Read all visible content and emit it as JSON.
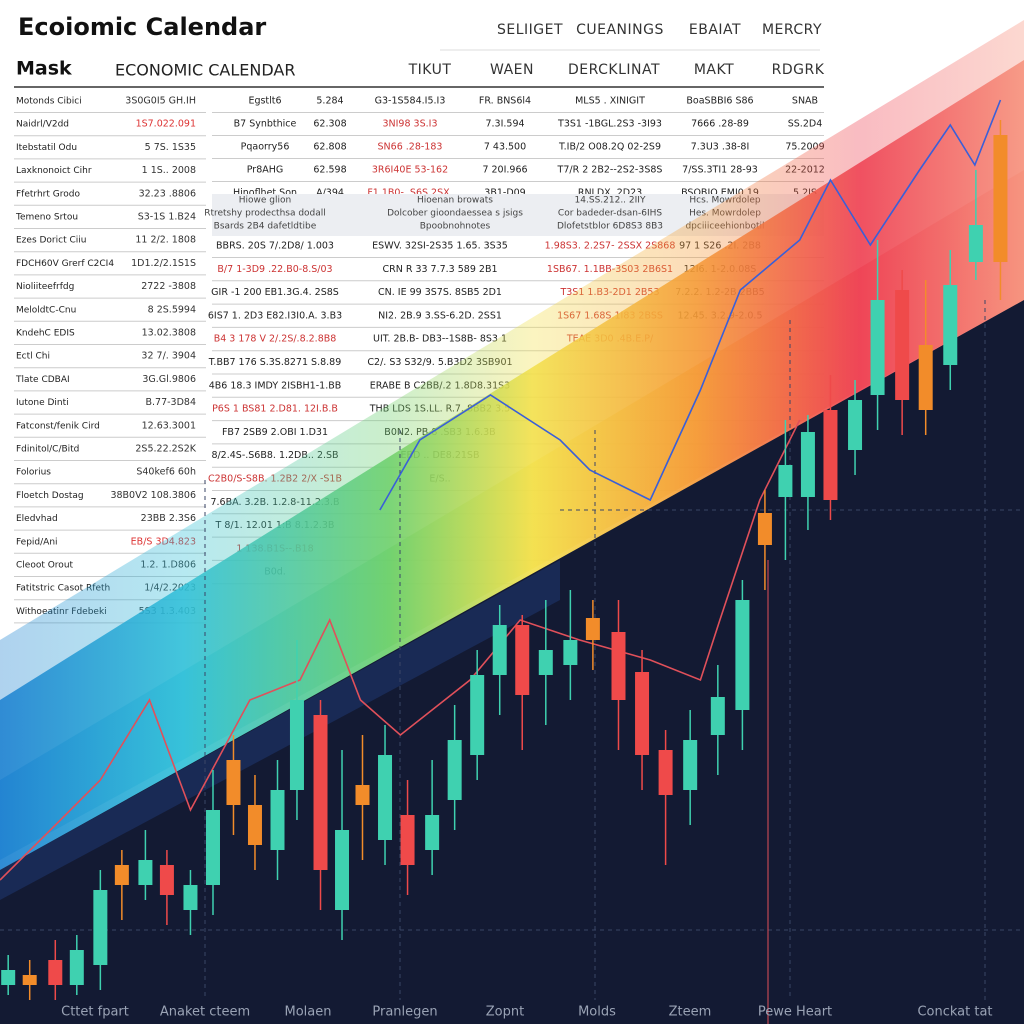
{
  "header": {
    "title": "Ecoiomic Calendar",
    "tabs": [
      "SELIIGET",
      "CUEANINGS",
      "EBAIAT",
      "MERCRY"
    ],
    "subtitle": "Mask",
    "section": "ECONOMIC CALENDAR",
    "columns": [
      "TIKUT",
      "WAEN",
      "DERCKLINAT",
      "MAKT",
      "RDGRK"
    ]
  },
  "side_table": {
    "rows": [
      [
        "Motonds Cibici",
        "3S0G0I5 GH.IH"
      ],
      [
        "Naidrl/V2dd",
        "1S7.022.091"
      ],
      [
        "Itebstatil Odu",
        "5 7S. 1S35"
      ],
      [
        "Laxknonoict Cihr",
        "1 1S.. 2008"
      ],
      [
        "Ffetrhrt Grodo",
        "32.23 .8806"
      ],
      [
        "Temeno Srtou",
        "S3-1S 1.B24"
      ],
      [
        "Ezes Dorict Ciiu",
        "11 2/2. 1808"
      ],
      [
        "FDCH60V Grerf C2CI4",
        "1D1.2/2.1S1S"
      ],
      [
        "Nioliiteefrfdg",
        "2722 -3808"
      ],
      [
        "MeloldtC-Cnu",
        "8 2S.5994"
      ],
      [
        "KndehC EDIS",
        "13.02.3808"
      ],
      [
        "Ectl Chi",
        "32 7/. 3904"
      ],
      [
        "Tlate CDBAI",
        "3G.Gl.9806"
      ],
      [
        "Iutone Dinti",
        "B.77-3D84"
      ],
      [
        "Fatconst/fenik Cird",
        "12.63.3001"
      ],
      [
        "Fdinitol/C/Bitd",
        "2S5.22.2S2K"
      ],
      [
        "Folorius",
        "S40kef6 60h"
      ],
      [
        "Floetch Dostag",
        "38B0V2 108.3806"
      ],
      [
        "Eledvhad",
        "23BB 2.3S6"
      ],
      [
        "Fepid/Ani",
        "EB/S 3D4.823"
      ],
      [
        "Cleoot Orout",
        "1.2. 1.D806"
      ],
      [
        "Fatitstric Casot Rfeth",
        "1/4/2.2023"
      ],
      [
        "Withoeatinr Fdebeki",
        "5S3 1.3.403"
      ]
    ]
  },
  "calendar": {
    "rows": [
      [
        "Egstlt6",
        "5.284",
        "G3-1S584.I5.I3",
        "FR. BNS6l4",
        "MLS5 . XINIGIT",
        "BoaSBBI6 S86",
        "SNAB"
      ],
      [
        "B7 Synbthice",
        "62.308",
        "3NI98 3S.I3",
        "7.3I.594",
        "T3S1 -1BGL.2S3 -3I93",
        "7666 .28-89",
        "SS.2D4"
      ],
      [
        "Pqaorry56",
        "62.808",
        "SN66 .28-183",
        "7 43.500",
        "T.IB/2 O08.2Q 02-2S9",
        "7.3U3 .38-8I",
        "75.2009"
      ],
      [
        "Pr8AHG",
        "62.598",
        "3R6I40E 53-162",
        "7 20I.966",
        "T7/R 2 2B2--2S2-3S8S",
        "7/SS.3TI1 28-93",
        "22-2012"
      ],
      [
        "Hinoflhet Son",
        "A/394",
        "F1 1B0- .S6S 2SX.",
        "3B1-D09",
        "RNLDX. 2D23",
        "BSOBIO EMI0.19",
        "5.2IS"
      ]
    ],
    "notes": [
      [
        "Hiowe glion",
        "Hioenan browats",
        "14.SS.212.. 2IIY",
        "Hcs. Mowrdolep"
      ],
      [
        "Rtretshy prodecthsa dodall",
        "Dolcober gioondaessea s jsigs",
        "Cor badeder-dsan-6IHS",
        "Hes. Mowrdolep"
      ],
      [
        "Bsards 2B4 dafetldtibe",
        "Bpoobnohnotes",
        "Dlofetstblor 6D8S3 8B3",
        "dpciiiceehionbotil"
      ]
    ],
    "entries": [
      [
        "BBRS. 20S 7/.2D8/ 1.003",
        "ESWV. 32SI-2S35 1.65. 3S35",
        "1.98S3. 2.2S7- 2SSX 2S868",
        "97 1 S26 .2I. 2B8"
      ],
      [
        "B/7 1-3D9 .22.B0-8.S/03",
        "CRN R 33 7.7.3 589 2B1",
        "1SB67. 1.1BB-3S03 2B6S1",
        "12I6. 1-2.0.08S"
      ],
      [
        "GIR -1 200 EB1.3G.4. 2S8S",
        "CN. IE 99 3S7S. 8SB5 2D1",
        "T3S1 1.B3-2D1 2B53",
        "7.2.2. 1.2-2B 2BB5"
      ],
      [
        "6IS7 1. 2D3 E82.I3I0.A. 3.B3",
        "NI2. 2B.9 3.SS-6.2D. 2SS1",
        "1S67 1.68S.1I83 2BSS",
        "12.45. 3.2.9-2.0.5"
      ],
      [
        "B4 3 178 V 2/.2S/.8.2.8B8",
        "UIT. 2B.B- DB3--1S8B- 8S3 1",
        "TEAE 3D0 .4B.E.P/"
      ],
      [
        "T.BB7 176 S.3S.8271 S.8.89",
        "C2/. S3 S32/9. 5.B3D2 3SB901"
      ],
      [
        "4B6 18.3 IMDY 2ISBH1-1.BB",
        "ERABE B C2BB/.2 1.8D8.31S3"
      ],
      [
        "P6S 1 BS81 2.D81. 12I.B.B",
        "THB LDS 1S.LL. R.7. 8BB2 3.5"
      ],
      [
        "FB7 2SB9 2.OBI 1.D31",
        "B0N2. PB.8 .SB3 1.6.3B"
      ],
      [
        "8/2.4S-.S6B8. 1.2DB.. 2.SB",
        "EBD .. DE8.21SB"
      ],
      [
        "C2B0/S-S8B. 1.2B2 2/X -S1B",
        "E/S.."
      ],
      [
        "7.6BA. 3.2B. 1.2.8-11.2.3.B"
      ],
      [
        "T 8/1. 12.01 1:B 8.1.2.3B"
      ],
      [
        "1 138.B1S--.B18"
      ],
      [
        "B0d."
      ]
    ]
  },
  "chart": {
    "type": "candlestick",
    "xlim": [
      0,
      100
    ],
    "ylim": [
      0,
      100
    ],
    "x_labels": [
      "Cttet fpart",
      "Anaket cteem",
      "Molaen",
      "Pranlegen",
      "Zopnt",
      "Molds",
      "Zteem",
      "Pewe Heart",
      "Conckat tat"
    ],
    "candles": [
      {
        "x": 0.8,
        "o": 1.5,
        "c": 3.0,
        "h": 4.5,
        "l": 0.5,
        "color": "#3fd1b0"
      },
      {
        "x": 2.9,
        "o": 2.5,
        "c": 1.5,
        "h": 4.0,
        "l": 0.0,
        "color": "#f28c2a"
      },
      {
        "x": 5.4,
        "o": 4.0,
        "c": 1.5,
        "h": 6.0,
        "l": 0.0,
        "color": "#ef4a4a"
      },
      {
        "x": 7.5,
        "o": 1.5,
        "c": 5.0,
        "h": 6.5,
        "l": 0.5,
        "color": "#3fd1b0"
      },
      {
        "x": 9.8,
        "o": 3.5,
        "c": 11.0,
        "h": 13.0,
        "l": 1.0,
        "color": "#3fd1b0"
      },
      {
        "x": 11.9,
        "o": 13.5,
        "c": 11.5,
        "h": 15.0,
        "l": 8.0,
        "color": "#f28c2a"
      },
      {
        "x": 14.2,
        "o": 11.5,
        "c": 14.0,
        "h": 17.0,
        "l": 10.0,
        "color": "#3fd1b0"
      },
      {
        "x": 16.3,
        "o": 13.5,
        "c": 10.5,
        "h": 15.0,
        "l": 7.5,
        "color": "#ef4a4a"
      },
      {
        "x": 18.6,
        "o": 9.0,
        "c": 11.5,
        "h": 13.0,
        "l": 6.5,
        "color": "#3fd1b0"
      },
      {
        "x": 20.8,
        "o": 11.5,
        "c": 19.0,
        "h": 23.0,
        "l": 8.5,
        "color": "#3fd1b0"
      },
      {
        "x": 22.8,
        "o": 24.0,
        "c": 19.5,
        "h": 26.5,
        "l": 16.5,
        "color": "#f28c2a"
      },
      {
        "x": 24.9,
        "o": 19.5,
        "c": 15.5,
        "h": 22.5,
        "l": 13.0,
        "color": "#f28c2a"
      },
      {
        "x": 27.1,
        "o": 15.0,
        "c": 21.0,
        "h": 24.0,
        "l": 12.0,
        "color": "#3fd1b0"
      },
      {
        "x": 29.0,
        "o": 21.0,
        "c": 30.0,
        "h": 36.0,
        "l": 18.0,
        "color": "#3fd1b0"
      },
      {
        "x": 31.3,
        "o": 28.5,
        "c": 13.0,
        "h": 30.0,
        "l": 9.0,
        "color": "#ef4a4a"
      },
      {
        "x": 33.4,
        "o": 9.0,
        "c": 17.0,
        "h": 25.0,
        "l": 6.0,
        "color": "#3fd1b0"
      },
      {
        "x": 35.4,
        "o": 21.5,
        "c": 19.5,
        "h": 26.5,
        "l": 14.0,
        "color": "#f28c2a"
      },
      {
        "x": 37.6,
        "o": 16.0,
        "c": 24.5,
        "h": 27.5,
        "l": 13.5,
        "color": "#3fd1b0"
      },
      {
        "x": 39.8,
        "o": 18.5,
        "c": 13.5,
        "h": 22.0,
        "l": 10.5,
        "color": "#ef4a4a"
      },
      {
        "x": 42.2,
        "o": 15.0,
        "c": 18.5,
        "h": 24.0,
        "l": 12.5,
        "color": "#3fd1b0"
      },
      {
        "x": 44.4,
        "o": 20.0,
        "c": 26.0,
        "h": 29.5,
        "l": 17.0,
        "color": "#3fd1b0"
      },
      {
        "x": 46.6,
        "o": 24.5,
        "c": 32.5,
        "h": 35.0,
        "l": 22.0,
        "color": "#3fd1b0"
      },
      {
        "x": 48.8,
        "o": 32.5,
        "c": 37.5,
        "h": 39.5,
        "l": 28.5,
        "color": "#3fd1b0"
      },
      {
        "x": 51.0,
        "o": 37.5,
        "c": 30.5,
        "h": 38.5,
        "l": 25.0,
        "color": "#ef4a4a"
      },
      {
        "x": 53.3,
        "o": 32.5,
        "c": 35.0,
        "h": 40.0,
        "l": 27.5,
        "color": "#3fd1b0"
      },
      {
        "x": 55.7,
        "o": 33.5,
        "c": 36.0,
        "h": 41.0,
        "l": 30.0,
        "color": "#3fd1b0"
      },
      {
        "x": 57.9,
        "o": 38.2,
        "c": 36.0,
        "h": 40.0,
        "l": 33.0,
        "color": "#f28c2a"
      },
      {
        "x": 60.4,
        "o": 36.8,
        "c": 30.0,
        "h": 40.0,
        "l": 25.0,
        "color": "#ef4a4a"
      },
      {
        "x": 62.7,
        "o": 32.8,
        "c": 24.5,
        "h": 35.0,
        "l": 21.0,
        "color": "#ef4a4a"
      },
      {
        "x": 65.0,
        "o": 25.0,
        "c": 20.5,
        "h": 27.0,
        "l": 13.5,
        "color": "#ef4a4a"
      },
      {
        "x": 67.4,
        "o": 21.0,
        "c": 26.0,
        "h": 29.0,
        "l": 17.5,
        "color": "#3fd1b0"
      },
      {
        "x": 70.1,
        "o": 26.5,
        "c": 30.3,
        "h": 33.5,
        "l": 22.5,
        "color": "#3fd1b0"
      },
      {
        "x": 72.5,
        "o": 29.0,
        "c": 40.0,
        "h": 42.0,
        "l": 25.0,
        "color": "#3fd1b0"
      },
      {
        "x": 74.7,
        "o": 48.7,
        "c": 45.5,
        "h": 51.0,
        "l": 41.0,
        "color": "#f28c2a"
      },
      {
        "x": 76.7,
        "o": 50.3,
        "c": 53.5,
        "h": 58.0,
        "l": 44.0,
        "color": "#3fd1b0"
      },
      {
        "x": 78.9,
        "o": 50.3,
        "c": 56.8,
        "h": 58.5,
        "l": 47.0,
        "color": "#3fd1b0"
      },
      {
        "x": 81.1,
        "o": 59.0,
        "c": 50.0,
        "h": 62.5,
        "l": 48.0,
        "color": "#ef4a4a"
      },
      {
        "x": 83.5,
        "o": 55.0,
        "c": 60.0,
        "h": 62.0,
        "l": 52.5,
        "color": "#3fd1b0"
      },
      {
        "x": 85.7,
        "o": 60.5,
        "c": 70.0,
        "h": 76.0,
        "l": 57.0,
        "color": "#3fd1b0"
      },
      {
        "x": 88.1,
        "o": 71.0,
        "c": 60.0,
        "h": 73.0,
        "l": 56.5,
        "color": "#ef4a4a"
      },
      {
        "x": 90.4,
        "o": 65.5,
        "c": 59.0,
        "h": 72.0,
        "l": 56.5,
        "color": "#f28c2a"
      },
      {
        "x": 92.8,
        "o": 63.5,
        "c": 71.5,
        "h": 75.0,
        "l": 61.0,
        "color": "#3fd1b0"
      },
      {
        "x": 95.3,
        "o": 73.8,
        "c": 77.5,
        "h": 83.0,
        "l": 72.0,
        "color": "#3fd1b0"
      },
      {
        "x": 97.7,
        "o": 86.5,
        "c": 73.8,
        "h": 88.0,
        "l": 70.0,
        "color": "#f28c2a"
      }
    ],
    "lines": [
      {
        "color": "#3a5fd8",
        "x": [
          37.1,
          41.0,
          47.9,
          54.7,
          57.6,
          63.5,
          68.4,
          72.3,
          78.1,
          81.1,
          85.0,
          89.8,
          92.8,
          95.2,
          97.7
        ],
        "values": [
          49,
          56,
          60.5,
          56,
          53,
          50,
          61,
          71,
          76,
          82,
          75.5,
          83,
          87.5,
          83.5,
          90
        ]
      },
      {
        "color": "#e0505a",
        "x": [
          0,
          5.9,
          9.8,
          14.6,
          18.6,
          24.4,
          29.3,
          32.2,
          35.2,
          39.1,
          45.9,
          50.8,
          56.6,
          63.5,
          68.4,
          70.3,
          74.2,
          78.1
        ],
        "values": [
          12,
          18,
          22,
          30,
          19,
          30,
          32,
          38,
          30,
          26.5,
          32,
          38,
          36,
          34,
          32,
          38,
          50,
          58
        ]
      }
    ]
  }
}
